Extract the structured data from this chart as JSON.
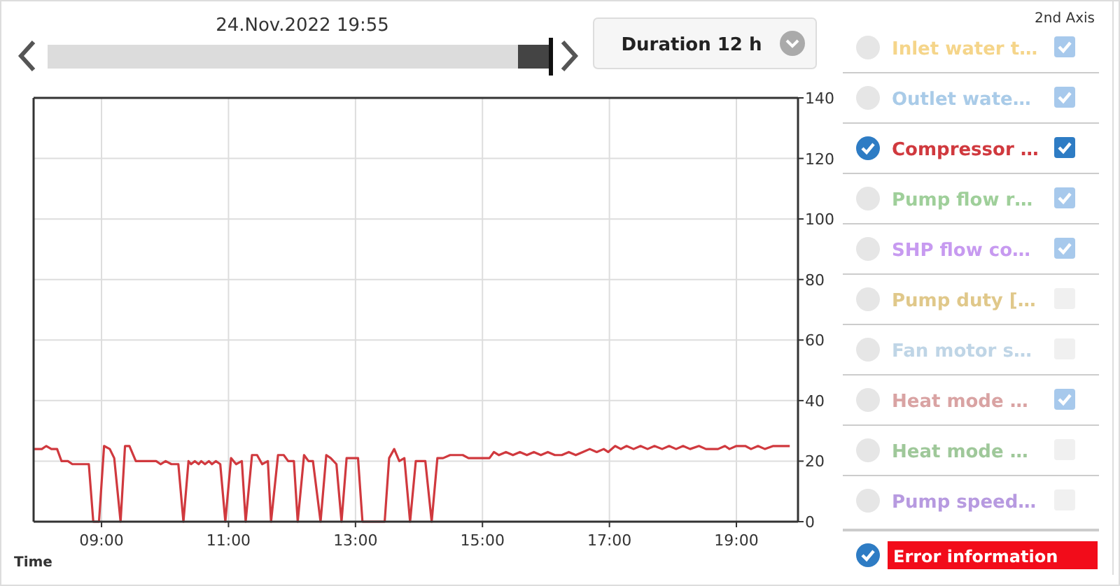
{
  "chart_data": {
    "type": "line",
    "xlabel": "Time",
    "legend": "right",
    "grid": true,
    "xlim": [
      7.93,
      19.97
    ],
    "xticks": [
      {
        "value": 9,
        "label": "09:00"
      },
      {
        "value": 11,
        "label": "11:00"
      },
      {
        "value": 13,
        "label": "13:00"
      },
      {
        "value": 15,
        "label": "15:00"
      },
      {
        "value": 17,
        "label": "17:00"
      },
      {
        "value": 19,
        "label": "19:00"
      }
    ],
    "y2lim": [
      0,
      140
    ],
    "y2ticks": [
      0,
      20,
      40,
      60,
      80,
      100,
      120,
      140
    ],
    "annotations": [
      "24.Nov.2022 19:55",
      "Duration 12 h",
      "2nd Axis",
      "Inlet water t…",
      "Outlet wate…",
      "Pump flow r…",
      "SHP flow co…",
      "Pump duty […",
      "Fan motor s…",
      "Heat mode …",
      "Heat mode …",
      "Pump speed…",
      "Error information"
    ],
    "series": [
      {
        "name": "Compressor …",
        "color": "#d0393e",
        "axis": "y2",
        "x": [
          7.93,
          8.06,
          8.13,
          8.21,
          8.3,
          8.37,
          8.47,
          8.54,
          8.8,
          8.87,
          8.96,
          9.04,
          9.13,
          9.2,
          9.3,
          9.37,
          9.44,
          9.54,
          9.86,
          9.93,
          10.01,
          10.1,
          10.21,
          10.29,
          10.37,
          10.41,
          10.47,
          10.53,
          10.57,
          10.63,
          10.69,
          10.74,
          10.8,
          10.87,
          10.95,
          11.04,
          11.12,
          11.21,
          11.27,
          11.37,
          11.45,
          11.53,
          11.62,
          11.67,
          11.78,
          11.87,
          11.94,
          12.03,
          12.09,
          12.19,
          12.26,
          12.33,
          12.45,
          12.54,
          12.61,
          12.7,
          12.78,
          12.86,
          13.04,
          13.11,
          13.46,
          13.53,
          13.61,
          13.69,
          13.77,
          13.86,
          13.95,
          14.1,
          14.2,
          14.29,
          14.38,
          14.49,
          14.6,
          14.69,
          14.78,
          15.11,
          15.18,
          15.26,
          15.37,
          15.48,
          15.59,
          15.7,
          15.81,
          15.92,
          16.03,
          16.14,
          16.25,
          16.36,
          16.47,
          16.58,
          16.69,
          16.8,
          16.91,
          16.98,
          17.09,
          17.18,
          17.27,
          17.38,
          17.49,
          17.6,
          17.71,
          17.83,
          17.94,
          18.05,
          18.16,
          18.27,
          18.41,
          18.52,
          18.71,
          18.82,
          18.89,
          19.0,
          19.14,
          19.23,
          19.34,
          19.45,
          19.58,
          19.84
        ],
        "values": [
          24,
          24,
          25,
          24,
          24,
          20,
          20,
          19,
          19,
          0,
          0,
          25,
          24,
          21,
          0,
          25,
          25,
          20,
          20,
          19,
          20,
          19,
          19,
          0,
          20,
          19,
          20,
          19,
          20,
          19,
          20,
          19,
          20,
          19,
          0,
          21,
          19,
          20,
          0,
          22,
          22,
          19,
          20,
          0,
          22,
          22,
          20,
          20,
          0,
          22,
          20,
          20,
          0,
          22,
          21,
          19,
          0,
          21,
          21,
          0,
          0,
          21,
          24,
          20,
          21,
          0,
          20,
          20,
          0,
          21,
          21,
          22,
          22,
          22,
          21,
          21,
          23,
          22,
          23,
          22,
          23,
          22,
          23,
          22,
          23,
          22,
          22,
          23,
          22,
          23,
          24,
          23,
          24,
          23,
          25,
          24,
          25,
          24,
          25,
          24,
          25,
          24,
          25,
          24,
          25,
          24,
          25,
          24,
          24,
          25,
          24,
          25,
          25,
          24,
          25,
          24,
          25,
          25
        ]
      }
    ]
  }
}
